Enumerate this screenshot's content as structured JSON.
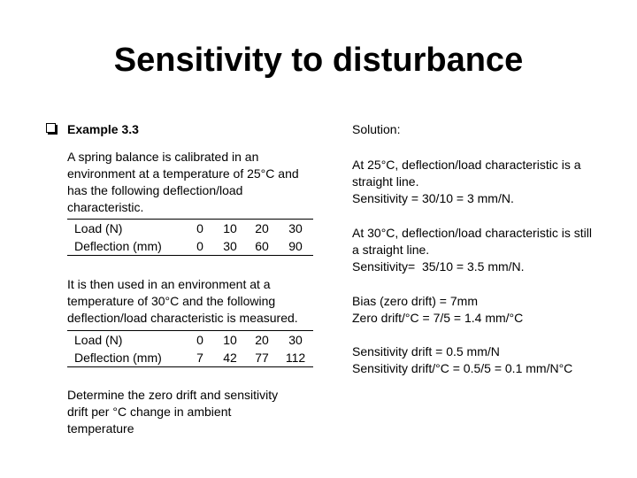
{
  "title": "Sensitivity to disturbance",
  "example": {
    "heading": "Example 3.3",
    "intro": [
      "A spring balance is calibrated in an",
      "environment at a temperature of 25°C and",
      "has the following deflection/load",
      "characteristic."
    ],
    "table1": {
      "rows": [
        [
          "Load (N)",
          0,
          10,
          20,
          30
        ],
        [
          "Deflection (mm)",
          0,
          30,
          60,
          90
        ]
      ]
    },
    "middle": [
      "It is then used in an environment at a",
      "temperature of 30°C and the following",
      "deflection/load characteristic is measured."
    ],
    "table2": {
      "rows": [
        [
          "Load (N)",
          0,
          10,
          20,
          30
        ],
        [
          "Deflection (mm)",
          7,
          42,
          77,
          112
        ]
      ]
    },
    "question": [
      "Determine the zero drift and sensitivity",
      "drift per °C change in ambient",
      "temperature"
    ]
  },
  "solution": {
    "heading": "Solution:",
    "paragraphs": [
      [
        "At 25°C, deflection/load characteristic is a",
        "straight line.",
        "Sensitivity = 30/10 = 3 mm/N."
      ],
      [
        "At 30°C, deflection/load characteristic is still",
        "a straight line.",
        "Sensitivity=  35/10 = 3.5 mm/N."
      ],
      [
        "Bias (zero drift) = 7mm",
        "Zero drift/°C = 7/5 = 1.4 mm/°C"
      ],
      [
        "Sensitivity drift = 0.5 mm/N",
        "Sensitivity drift/°C = 0.5/5 = 0.1 mm/N°C"
      ]
    ]
  }
}
